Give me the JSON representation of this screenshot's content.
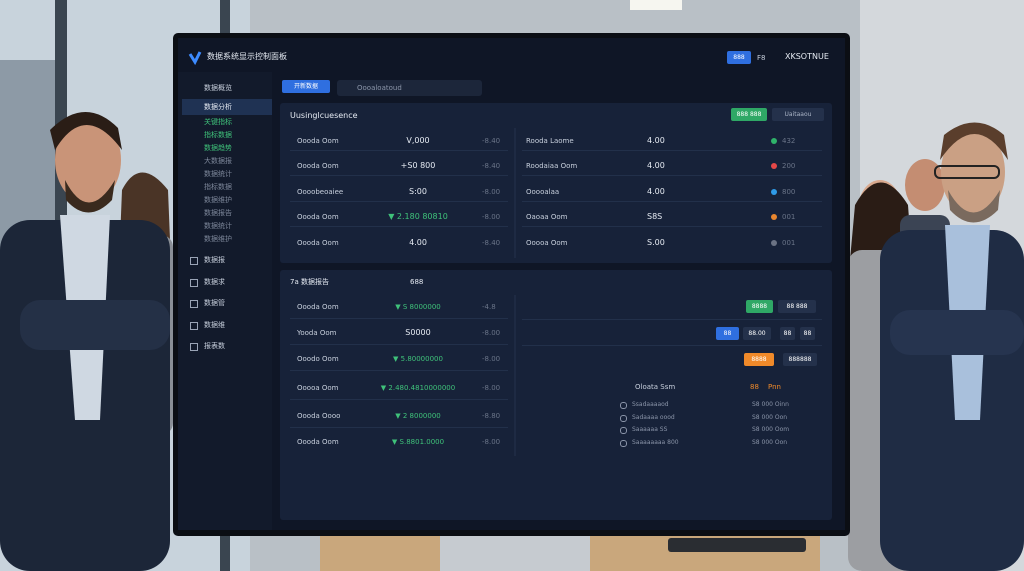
{
  "app": {
    "title": "数据系统显示控制面板",
    "header_buttons": [
      "888",
      "F8"
    ],
    "brand": "XKSOTNUE"
  },
  "sidebar": {
    "top_section": "数据概览",
    "active_item": "数据分析",
    "green_items": [
      "关键指标",
      "指标数据",
      "数据趋势"
    ],
    "items": [
      "大数据报",
      "数据统计",
      "指标数据",
      "数据维护",
      "数据报告",
      "数据统计",
      "数据维护"
    ],
    "sections": [
      "数据报",
      "数据求",
      "数据管",
      "数据维",
      "报表数"
    ]
  },
  "toolbar": {
    "button": "开新数据",
    "search": "Oooaloatoud"
  },
  "panel1": {
    "title": "Uusinglcuesence",
    "buttons": [
      "888 888",
      "Uaitaaou"
    ],
    "left_rows": [
      {
        "label": "Oooda Oom",
        "value": "V,000",
        "change": "-8.40"
      },
      {
        "label": "Oooda Oom",
        "value": "+S0 800",
        "change": "-8.40"
      },
      {
        "label": "Oooobeoaiee",
        "value": "S:00",
        "change": "-8.00"
      },
      {
        "label": "Oooda Oom",
        "value": "▼ 2.180 80810",
        "change": "-8.00"
      },
      {
        "label": "Oooda Oom",
        "value": "4.00",
        "change": "-8.40"
      }
    ],
    "right_rows": [
      {
        "label": "Rooda Laome",
        "value": "4.00",
        "change": "432",
        "color": "#2fb36a"
      },
      {
        "label": "Roodaiaa Oom",
        "value": "4.00",
        "change": "200",
        "color": "#e54848"
      },
      {
        "label": "Ooooalaa",
        "value": "4.00",
        "change": "800",
        "color": "#2f9be8"
      },
      {
        "label": "Oaoaa Oom",
        "value": "S8S",
        "change": "001",
        "color": "#e8862f"
      },
      {
        "label": "Ooooa Oom",
        "value": "S.00",
        "change": "001",
        "color": "#6b7384"
      }
    ]
  },
  "panel2": {
    "title": "7a 数据报告",
    "subtitle": "688",
    "rows": [
      {
        "label": "Oooda Oom",
        "value": "▼ S 8000000",
        "change": "-4.8"
      },
      {
        "label": "Yooda Oom",
        "value": "S0000",
        "change": "-8.00"
      },
      {
        "label": "Ooodo Oom",
        "value": "▼ 5.80000000",
        "change": "-8.00"
      },
      {
        "label": "Ooooa Oom",
        "value": "▼ 2.480.4810000000",
        "change": "-8.00"
      },
      {
        "label": "Oooda Oooo",
        "value": "▼ 2 8000000",
        "change": "-8.80"
      },
      {
        "label": "Oooda Oom",
        "value": "▼ S.8801.0000",
        "change": "-8.00"
      }
    ],
    "buttons_row1": [
      "8888",
      "88 888"
    ],
    "buttons_row2": [
      "88",
      "88.00",
      "88",
      "88"
    ],
    "buttons_row3": [
      "8888",
      "888888"
    ],
    "legend_header": [
      "Oloata Ssm",
      "88",
      "Pnn"
    ],
    "legend_rows": [
      {
        "label": "Ssadaaaaod",
        "value": "S8 000 Oinn"
      },
      {
        "label": "Sadaaaa oood",
        "value": "S8 000 Oon"
      },
      {
        "label": "Saaaaaa SS",
        "value": "S8 000 Oom"
      },
      {
        "label": "Saaaaaaaa 800",
        "value": "S8 000 Oon"
      }
    ]
  }
}
